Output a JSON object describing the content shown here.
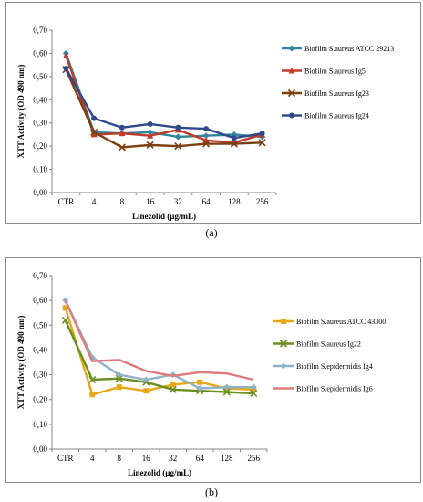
{
  "panels": [
    {
      "label": "(a)",
      "chart_data": {
        "type": "line",
        "categories": [
          "CTR",
          "4",
          "8",
          "16",
          "32",
          "64",
          "128",
          "256"
        ],
        "xlabel": "Linezolid (µg/mL)",
        "ylabel": "XTT Activity (OD 490 nm)",
        "ylim": [
          0.0,
          0.7
        ],
        "yticks": [
          "0,00",
          "0,10",
          "0,20",
          "0,30",
          "0,40",
          "0,50",
          "0,60",
          "0,70"
        ],
        "grid": false,
        "legend_position": "right",
        "series": [
          {
            "name": "Biofilm S.aureus ATCC 29213",
            "color": "#31859c",
            "marker": "diamond",
            "values": [
              0.6,
              0.26,
              0.255,
              0.26,
              0.24,
              0.245,
              0.25,
              0.24
            ]
          },
          {
            "name": "Biofilm S.aureus Ig5",
            "color": "#c0392b",
            "marker": "triangle",
            "values": [
              0.59,
              0.25,
              0.255,
              0.245,
              0.27,
              0.225,
              0.215,
              0.25
            ]
          },
          {
            "name": "Biofilm S.aureus Ig23",
            "color": "#7b3f10",
            "marker": "x",
            "values": [
              0.53,
              0.26,
              0.195,
              0.205,
              0.2,
              0.21,
              0.21,
              0.215
            ]
          },
          {
            "name": "Biofilm S.aureus Ig24",
            "color": "#2e4a8a",
            "marker": "circle",
            "values": [
              0.535,
              0.32,
              0.28,
              0.295,
              0.28,
              0.275,
              0.235,
              0.255
            ]
          }
        ]
      }
    },
    {
      "label": "(b)",
      "chart_data": {
        "type": "line",
        "categories": [
          "CTR",
          "4",
          "8",
          "16",
          "32",
          "64",
          "128",
          "256"
        ],
        "xlabel": "Linezolid (µg/mL)",
        "ylabel": "XTT Activity (OD 490 nm)",
        "ylim": [
          0.0,
          0.7
        ],
        "yticks": [
          "0,00",
          "0,10",
          "0,20",
          "0,30",
          "0,40",
          "0,50",
          "0,60",
          "0,70"
        ],
        "grid": false,
        "legend_position": "right",
        "series": [
          {
            "name": "Biofilm S.aureus ATCC 43300",
            "color": "#e6a817",
            "marker": "square",
            "values": [
              0.57,
              0.22,
              0.25,
              0.235,
              0.26,
              0.27,
              0.245,
              0.24
            ]
          },
          {
            "name": "Biofilm S.aureus Ig22",
            "color": "#6b8e23",
            "marker": "x",
            "values": [
              0.52,
              0.28,
              0.285,
              0.27,
              0.24,
              0.235,
              0.23,
              0.225
            ]
          },
          {
            "name": "Biofilm S.epidermidis Ig4",
            "color": "#8fb3c6",
            "marker": "diamond",
            "values": [
              0.6,
              0.37,
              0.3,
              0.28,
              0.3,
              0.245,
              0.25,
              0.25
            ]
          },
          {
            "name": "Biofilm S.epidermidis Ig6",
            "color": "#e07b7b",
            "marker": "none",
            "values": [
              0.6,
              0.355,
              0.36,
              0.315,
              0.295,
              0.31,
              0.305,
              0.28
            ]
          }
        ]
      }
    }
  ]
}
